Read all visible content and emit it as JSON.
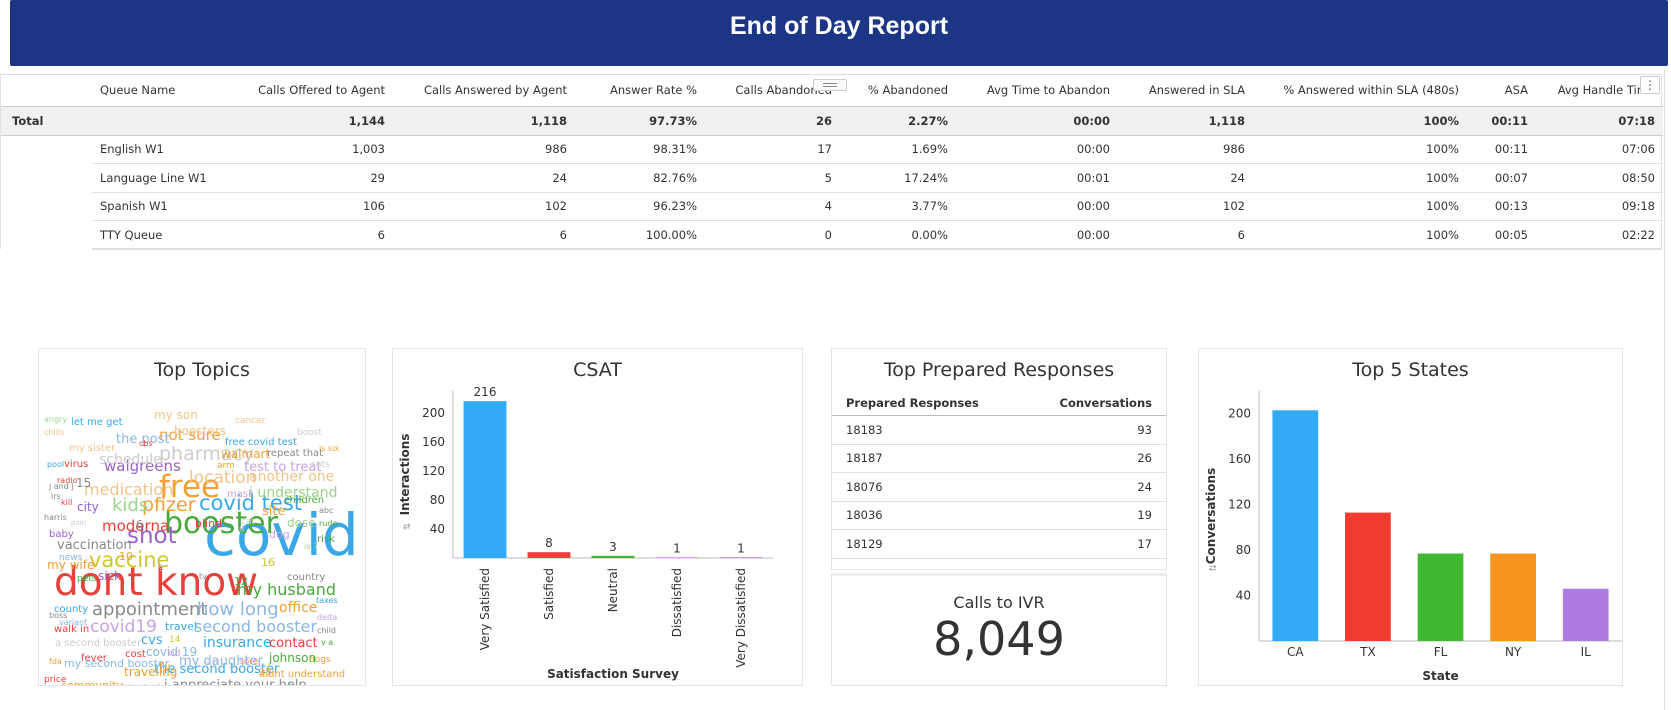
{
  "report": {
    "title": "End of Day Report"
  },
  "table": {
    "headers": [
      "",
      "Queue Name",
      "Calls Offered to Agent",
      "Calls Answered by Agent",
      "Answer Rate %",
      "Calls Abandoned",
      "% Abandoned",
      "Avg Time to Abandon",
      "Answered in SLA",
      "% Answered within SLA (480s)",
      "ASA",
      "Avg Handle Time"
    ],
    "total": [
      "Total",
      "",
      "1,144",
      "1,118",
      "97.73%",
      "26",
      "2.27%",
      "00:00",
      "1,118",
      "100%",
      "00:11",
      "07:18"
    ],
    "rows": [
      [
        "",
        "English W1",
        "1,003",
        "986",
        "98.31%",
        "17",
        "1.69%",
        "00:00",
        "986",
        "100%",
        "00:11",
        "07:06"
      ],
      [
        "",
        "Language Line W1",
        "29",
        "24",
        "82.76%",
        "5",
        "17.24%",
        "00:01",
        "24",
        "100%",
        "00:07",
        "08:50"
      ],
      [
        "",
        "Spanish W1",
        "106",
        "102",
        "96.23%",
        "4",
        "3.77%",
        "00:00",
        "102",
        "100%",
        "00:13",
        "09:18"
      ],
      [
        "",
        "TTY Queue",
        "6",
        "6",
        "100.00%",
        "0",
        "0.00%",
        "00:00",
        "6",
        "100%",
        "00:05",
        "02:22"
      ]
    ]
  },
  "topics": {
    "title": "Top Topics",
    "words": [
      {
        "t": "covid",
        "c": "#3aa8e8"
      },
      {
        "t": "dont know",
        "c": "#e8403c"
      },
      {
        "t": "booster",
        "c": "#4aa93c"
      },
      {
        "t": "free",
        "c": "#f1a035"
      },
      {
        "t": "shot",
        "c": "#9a61c9"
      },
      {
        "t": "vaccine",
        "c": "#c9c92a"
      },
      {
        "t": "covid test",
        "c": "#3aa8e8"
      },
      {
        "t": "appointment",
        "c": "#888888"
      },
      {
        "t": "how long",
        "c": "#8ab7e4"
      },
      {
        "t": "pfizer",
        "c": "#f1a035"
      },
      {
        "t": "kids",
        "c": "#9ed28e"
      },
      {
        "t": "medication",
        "c": "#f1c48a"
      },
      {
        "t": "location",
        "c": "#f1c48a"
      },
      {
        "t": "moderna",
        "c": "#e8403c"
      },
      {
        "t": "my husband",
        "c": "#4aa93c"
      },
      {
        "t": "second booster",
        "c": "#8ab7e4"
      },
      {
        "t": "covid19",
        "c": "#c9a2e4"
      },
      {
        "t": "walgreens",
        "c": "#9a61c9"
      },
      {
        "t": "pharmacy",
        "c": "#cccccc"
      },
      {
        "t": "i understand",
        "c": "#9ed28e"
      },
      {
        "t": "not sure",
        "c": "#f1a035"
      },
      {
        "t": "insurance",
        "c": "#3aa8e8"
      },
      {
        "t": "the second booster",
        "c": "#3aa8e8"
      },
      {
        "t": "i appreciate your help",
        "c": "#888888"
      },
      {
        "t": "vaccination",
        "c": "#888888"
      },
      {
        "t": "another one",
        "c": "#f1c48a"
      },
      {
        "t": "office",
        "c": "#f1a035"
      },
      {
        "t": "contact",
        "c": "#e8403c"
      },
      {
        "t": "cvs",
        "c": "#3aa8e8"
      },
      {
        "t": "johnson",
        "c": "#4aa93c"
      },
      {
        "t": "my daughter",
        "c": "#8ab7e4"
      },
      {
        "t": "traveling",
        "c": "#f1a035"
      },
      {
        "t": "community",
        "c": "#f1a035"
      },
      {
        "t": "get tested",
        "c": "#8ab7e4"
      },
      {
        "t": "charge",
        "c": "#3aa8e8"
      },
      {
        "t": "covid 19",
        "c": "#8ab7e4"
      },
      {
        "t": "didnt understand",
        "c": "#f1a035"
      },
      {
        "t": "my second booster",
        "c": "#8ab7e4"
      },
      {
        "t": "a second booster",
        "c": "#cccccc"
      },
      {
        "t": "county",
        "c": "#3aa8e8"
      },
      {
        "t": "my wife",
        "c": "#f1a035"
      },
      {
        "t": "sick",
        "c": "#9a61c9"
      },
      {
        "t": "site",
        "c": "#f1a035"
      },
      {
        "t": "dose",
        "c": "#9ed28e"
      },
      {
        "t": "city",
        "c": "#9a61c9"
      },
      {
        "t": "schedule",
        "c": "#cccccc"
      },
      {
        "t": "the post",
        "c": "#8ab7e4"
      },
      {
        "t": "boosters",
        "c": "#f1c48a"
      },
      {
        "t": "my son",
        "c": "#f1c48a"
      },
      {
        "t": "let me get",
        "c": "#3aa8e8"
      },
      {
        "t": "free covid test",
        "c": "#3aa8e8"
      },
      {
        "t": "walmart",
        "c": "#f1a035"
      },
      {
        "t": "test to treat",
        "c": "#c9a2e4"
      },
      {
        "t": "repeat that",
        "c": "#888888"
      },
      {
        "t": "my sister",
        "c": "#f1c48a"
      },
      {
        "t": "virus",
        "c": "#e8403c"
      },
      {
        "t": "children",
        "c": "#4aa93c"
      },
      {
        "t": "blind",
        "c": "#e8403c"
      },
      {
        "t": "travel",
        "c": "#3aa8e8"
      },
      {
        "t": "cost",
        "c": "#e8403c"
      },
      {
        "t": "fever",
        "c": "#e8403c"
      },
      {
        "t": "job",
        "c": "#9a61c9"
      },
      {
        "t": "price",
        "c": "#e8403c"
      },
      {
        "t": "baby",
        "c": "#9a61c9"
      },
      {
        "t": "pool",
        "c": "#3aa8e8"
      },
      {
        "t": "mask",
        "c": "#c9a2e4"
      },
      {
        "t": "country",
        "c": "#888888"
      },
      {
        "t": "risk",
        "c": "#4aa93c"
      },
      {
        "t": "rude",
        "c": "#4aa93c"
      },
      {
        "t": "walk in",
        "c": "#e8403c"
      },
      {
        "t": "flu",
        "c": "#f1a035"
      },
      {
        "t": "sore",
        "c": "#f1a035"
      },
      {
        "t": "dogs",
        "c": "#f1a035"
      },
      {
        "t": "cases",
        "c": "#8ab7e4"
      },
      {
        "t": "taxes",
        "c": "#3aa8e8"
      },
      {
        "t": "cancer",
        "c": "#f1c48a"
      },
      {
        "t": "boost",
        "c": "#cccccc"
      },
      {
        "t": "is six",
        "c": "#f1a035"
      },
      {
        "t": "cats",
        "c": "#cccccc"
      },
      {
        "t": "radio",
        "c": "#e8403c"
      },
      {
        "t": "angry",
        "c": "#9ed28e"
      },
      {
        "t": "news",
        "c": "#8ab7e4"
      },
      {
        "t": "pets",
        "c": "#4aa93c"
      },
      {
        "t": "fda",
        "c": "#f1a035"
      },
      {
        "t": "variant",
        "c": "#8ab7e4"
      },
      {
        "t": "boss",
        "c": "#888888"
      },
      {
        "t": "harris",
        "c": "#888888"
      },
      {
        "t": "dog",
        "c": "#c9a2e4"
      },
      {
        "t": "abc",
        "c": "#888888"
      },
      {
        "t": "child",
        "c": "#888888"
      },
      {
        "t": "delta",
        "c": "#c9a2e4"
      },
      {
        "t": "kill",
        "c": "#e8403c"
      },
      {
        "t": "irs",
        "c": "#888888"
      },
      {
        "t": "chills",
        "c": "#f1c48a"
      },
      {
        "t": "arm",
        "c": "#f1a035"
      },
      {
        "t": "cbs",
        "c": "#e8403c"
      },
      {
        "t": "j and j",
        "c": "#888888"
      },
      {
        "t": "kid",
        "c": "#c9a2e4"
      },
      {
        "t": "cat",
        "c": "#cccccc"
      },
      {
        "t": "is 7",
        "c": "#9ed28e"
      },
      {
        "t": "tv",
        "c": "#888888"
      },
      {
        "t": "15",
        "c": "#888888"
      },
      {
        "t": "12",
        "c": "#4aa93c"
      },
      {
        "t": "16",
        "c": "#c9c92a"
      },
      {
        "t": "10",
        "c": "#f1a035"
      },
      {
        "t": "14",
        "c": "#c9c92a"
      },
      {
        "t": "13",
        "c": "#f1a035"
      },
      {
        "t": "6",
        "c": "#888888"
      },
      {
        "t": "8",
        "c": "#cccccc"
      },
      {
        "t": "9",
        "c": "#cccccc"
      },
      {
        "t": "v a",
        "c": "#4aa93c"
      },
      {
        "t": "pill",
        "c": "#cccccc"
      },
      {
        "t": "pain",
        "c": "#cccccc"
      }
    ]
  },
  "csat": {
    "title": "CSAT",
    "chart_data": {
      "type": "bar",
      "categories": [
        "Very Satisfied",
        "Satisfied",
        "Neutral",
        "Dissatisfied",
        "Very Dissatisfied"
      ],
      "values": [
        216,
        8,
        3,
        1,
        1
      ],
      "colors": [
        "#33aaf5",
        "#e8403c",
        "#4ab33e",
        "#f49a2a",
        "#b07be0"
      ],
      "xlabel": "Satisfaction Survey",
      "ylabel": "Interactions",
      "yticks": [
        40,
        80,
        120,
        160,
        200
      ],
      "ylim": [
        0,
        230
      ],
      "data_labels": true,
      "grid": false
    }
  },
  "responses": {
    "title": "Top Prepared Responses",
    "col1": "Prepared Responses",
    "col2": "Conversations",
    "rows": [
      {
        "id": "18183",
        "count": "93"
      },
      {
        "id": "18187",
        "count": "26"
      },
      {
        "id": "18076",
        "count": "24"
      },
      {
        "id": "18036",
        "count": "19"
      },
      {
        "id": "18129",
        "count": "17"
      }
    ]
  },
  "ivr": {
    "label": "Calls to IVR",
    "value": "8,049"
  },
  "states": {
    "title": "Top 5 States",
    "chart_data": {
      "type": "bar",
      "categories": [
        "CA",
        "TX",
        "FL",
        "NY",
        "IL"
      ],
      "values": [
        203,
        113,
        77,
        77,
        46
      ],
      "colors": [
        "#33aaf5",
        "#f33b2f",
        "#3fb92f",
        "#f7941d",
        "#b07be0"
      ],
      "xlabel": "State",
      "ylabel": "Conversations",
      "yticks": [
        40,
        80,
        120,
        160,
        200
      ],
      "ylim": [
        0,
        220
      ],
      "data_labels": false,
      "grid": false
    }
  }
}
